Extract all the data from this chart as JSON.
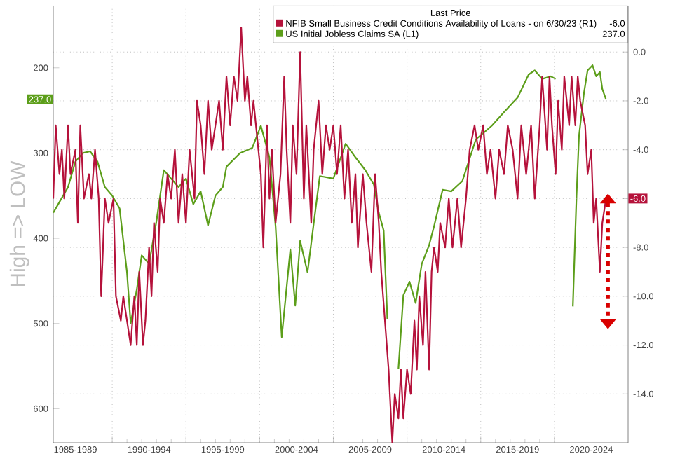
{
  "chart_data": {
    "type": "line",
    "ylabel": "High => LOW",
    "legend_title": "Last Price",
    "legend": "top right",
    "grid": true,
    "annotations": [
      "-6.0",
      "237.0"
    ],
    "xlim": [
      "1986-01",
      "2025-01"
    ],
    "xticks": [
      {
        "value": "1987-07",
        "label": "1985-1989"
      },
      {
        "value": "1990-01",
        "label": null
      },
      {
        "value": "1992-07",
        "label": "1990-1994"
      },
      {
        "value": "1995-01",
        "label": null
      },
      {
        "value": "1997-07",
        "label": "1995-1999"
      },
      {
        "value": "2000-01",
        "label": null
      },
      {
        "value": "2002-07",
        "label": "2000-2004"
      },
      {
        "value": "2005-01",
        "label": null
      },
      {
        "value": "2007-07",
        "label": "2005-2009"
      },
      {
        "value": "2010-01",
        "label": null
      },
      {
        "value": "2012-07",
        "label": "2010-2014"
      },
      {
        "value": "2015-01",
        "label": null
      },
      {
        "value": "2017-07",
        "label": "2015-2019"
      },
      {
        "value": "2020-01",
        "label": null
      },
      {
        "value": "2022-07",
        "label": "2020-2024"
      }
    ],
    "ylim": [
      640,
      127
    ],
    "yticks": [
      200,
      300,
      400,
      500,
      600
    ],
    "y2lim": [
      -16,
      1.9
    ],
    "y2ticks": [
      {
        "value": 0,
        "label": "0.0"
      },
      {
        "value": -2,
        "label": "-2.0"
      },
      {
        "value": -4,
        "label": "-4.0"
      },
      {
        "value": -6,
        "label": null
      },
      {
        "value": -8,
        "label": "-8.0"
      },
      {
        "value": -10,
        "label": "-10.0"
      },
      {
        "value": -12,
        "label": "-12.0"
      },
      {
        "value": -14,
        "label": "-14.0"
      }
    ],
    "series": [
      {
        "name": "NFIB Small Business Credit Conditions Availability of Loans -  on 6/30/23  (R1)",
        "color": "#b5123b",
        "axis": "y2",
        "x": [
          "1986-01",
          "1986-03",
          "1986-06",
          "1986-08",
          "1986-10",
          "1987-01",
          "1987-03",
          "1987-07",
          "1987-09",
          "1987-11",
          "1988-02",
          "1988-06",
          "1988-08",
          "1988-11",
          "1989-02",
          "1989-04",
          "1989-07",
          "1989-10",
          "1990-02",
          "1990-04",
          "1990-08",
          "1990-10",
          "1991-01",
          "1991-04",
          "1991-07",
          "1991-09",
          "1991-11",
          "1992-02",
          "1992-04",
          "1992-07",
          "1992-09",
          "1992-11",
          "1993-02",
          "1993-04",
          "1993-07",
          "1993-10",
          "1994-01",
          "1994-04",
          "1994-07",
          "1994-10",
          "1995-01",
          "1995-04",
          "1995-08",
          "1995-10",
          "1996-01",
          "1996-04",
          "1996-07",
          "1996-10",
          "1997-01",
          "1997-04",
          "1997-07",
          "1997-10",
          "1998-01",
          "1998-04",
          "1998-07",
          "1998-10",
          "1999-01",
          "1999-03",
          "1999-06",
          "1999-08",
          "1999-10",
          "2000-02",
          "2000-04",
          "2000-07",
          "2000-09",
          "2000-11",
          "2001-02",
          "2001-06",
          "2001-09",
          "2001-11",
          "2002-02",
          "2002-04",
          "2002-07",
          "2002-10",
          "2003-01",
          "2003-03",
          "2003-07",
          "2003-09",
          "2004-01",
          "2004-04",
          "2004-07",
          "2004-10",
          "2005-01",
          "2005-04",
          "2005-07",
          "2005-10",
          "2006-01",
          "2006-04",
          "2006-07",
          "2006-09",
          "2007-01",
          "2007-04",
          "2007-08",
          "2007-11",
          "2008-02",
          "2008-04",
          "2008-07",
          "2008-10",
          "2009-01",
          "2009-03",
          "2009-06",
          "2009-08",
          "2009-10",
          "2010-01",
          "2010-04",
          "2010-07",
          "2010-09",
          "2010-11",
          "2011-02",
          "2011-04",
          "2011-07",
          "2011-09",
          "2011-11",
          "2012-02",
          "2012-04",
          "2012-08",
          "2012-11",
          "2013-02",
          "2013-06",
          "2013-09",
          "2014-01",
          "2014-04",
          "2014-08",
          "2014-11",
          "2015-03",
          "2015-06",
          "2015-09",
          "2016-01",
          "2016-04",
          "2016-08",
          "2016-11",
          "2017-03",
          "2017-07",
          "2017-10",
          "2018-02",
          "2018-06",
          "2018-09",
          "2019-01",
          "2019-03",
          "2019-07",
          "2019-09",
          "2019-11",
          "2020-02",
          "2020-04",
          "2020-07",
          "2020-09",
          "2021-01",
          "2021-03",
          "2021-06",
          "2021-08",
          "2021-10",
          "2022-02",
          "2022-04",
          "2022-07",
          "2022-09",
          "2022-11",
          "2023-02",
          "2023-04",
          "2023-07"
        ],
        "values": [
          -6,
          -3,
          -5,
          -4,
          -6,
          -3,
          -5,
          -4,
          -7,
          -3,
          -6,
          -5,
          -6,
          -4,
          -6,
          -10,
          -6,
          -7,
          -6,
          -10,
          -11,
          -10,
          -11,
          -12,
          -10,
          -12,
          -9,
          -12,
          -11,
          -8,
          -10,
          -7,
          -9,
          -6,
          -7,
          -5,
          -6,
          -4,
          -7,
          -5,
          -7,
          -4,
          -6,
          -2,
          -3,
          -5,
          -2,
          -4,
          -3,
          -2,
          -4,
          -1,
          -3,
          -1,
          -2,
          1,
          -2,
          -1,
          -3,
          -2,
          -3,
          -5,
          -8,
          -3,
          -6,
          -4,
          -7,
          -5,
          -1,
          -4,
          -7,
          -3,
          -5,
          0,
          -6,
          -3,
          -7,
          -4,
          -2,
          -5,
          -3,
          -4,
          -3,
          -5,
          -3,
          -6,
          -4,
          -7,
          -5,
          -8,
          -5,
          -7,
          -9,
          -5,
          -7,
          -9,
          -11,
          -13,
          -16,
          -14,
          -15,
          -13,
          -15,
          -13,
          -14,
          -11,
          -13,
          -10,
          -12,
          -9,
          -13,
          -9,
          -8,
          -9,
          -7,
          -8,
          -6,
          -8,
          -6,
          -8,
          -6,
          -4,
          -3,
          -4,
          -3,
          -5,
          -4,
          -6,
          -4,
          -5,
          -3,
          -4,
          -6,
          -3,
          -5,
          -3,
          -6,
          -3,
          -1,
          -4,
          -1,
          -3,
          -5,
          -2,
          -4,
          -1,
          -3,
          -1,
          -3,
          -1,
          -2,
          -3,
          -5,
          -4,
          -7,
          -6,
          -9,
          -7,
          -6
        ]
      },
      {
        "name": "US Initial Jobless Claims SA  (L1)",
        "color": "#5c9e1a",
        "axis": "y",
        "x": [
          "1986-01",
          "1986-07",
          "1987-01",
          "1987-07",
          "1988-01",
          "1988-07",
          "1989-01",
          "1989-07",
          "1990-01",
          "1990-07",
          "1991-01",
          "1991-04",
          "1991-09",
          "1992-01",
          "1992-07",
          "1993-01",
          "1993-07",
          "1994-01",
          "1994-07",
          "1995-01",
          "1995-07",
          "1996-01",
          "1996-07",
          "1997-01",
          "1997-07",
          "1997-10",
          "1998-09",
          "1999-07",
          "2000-02",
          "2000-09",
          "2001-02",
          "2001-07",
          "2002-02",
          "2002-06",
          "2002-10",
          "2003-04",
          "2003-09",
          "2004-02",
          "2005-01",
          "2005-11",
          "2006-07",
          "2007-03",
          "2007-10",
          "2008-02",
          "2008-06",
          "2008-09",
          "2008-11",
          "2009-06",
          "2009-10",
          "2010-03",
          "2010-08",
          "2011-01",
          "2011-07",
          "2011-11",
          "2012-06",
          "2013-01",
          "2013-10",
          "2014-09",
          "2015-10",
          "2016-08",
          "2017-07",
          "2018-04",
          "2018-09",
          "2019-03",
          "2019-10",
          "2020-02",
          "2020-03",
          "2020-07",
          "2021-01",
          "2021-03",
          "2021-04",
          "2021-07",
          "2021-09",
          "2022-01",
          "2022-04",
          "2022-08",
          "2022-11",
          "2023-02",
          "2023-04",
          "2023-07"
        ],
        "values": [
          370,
          355,
          340,
          310,
          300,
          298,
          310,
          340,
          350,
          365,
          440,
          500,
          460,
          420,
          430,
          380,
          320,
          330,
          340,
          330,
          360,
          345,
          385,
          350,
          340,
          316,
          300,
          294,
          268,
          305,
          386,
          516,
          413,
          479,
          403,
          440,
          383,
          327,
          330,
          289,
          305,
          320,
          337,
          370,
          391,
          495,
          null,
          553,
          467,
          451,
          476,
          430,
          408,
          386,
          343,
          345,
          333,
          284,
          268,
          252,
          235,
          208,
          203,
          213,
          210,
          213,
          null,
          null,
          null,
          null,
          480,
          350,
          280,
          230,
          203,
          197,
          210,
          205,
          225,
          237
        ]
      }
    ]
  }
}
